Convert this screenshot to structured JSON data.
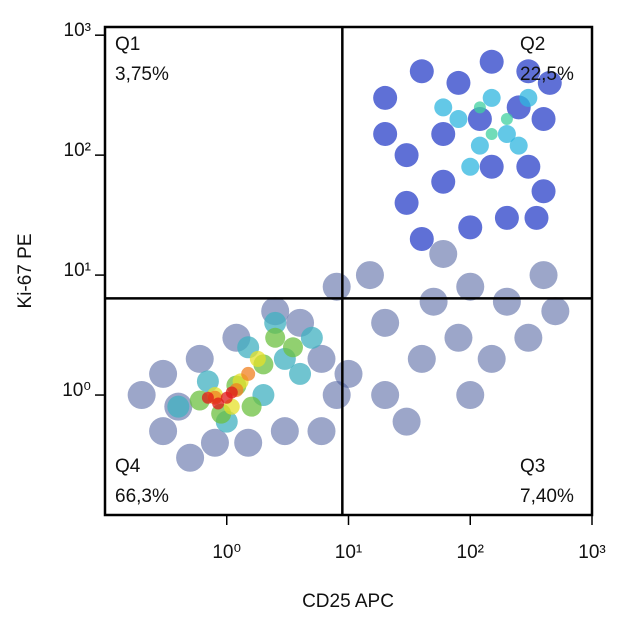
{
  "chart_data": {
    "type": "scatter",
    "x_label": "CD25 APC",
    "y_label": "Ki-67 PE",
    "xscale": "log",
    "yscale": "log",
    "xlim": [
      0.1,
      1000
    ],
    "ylim": [
      0.1,
      1170
    ],
    "xticks": [
      {
        "value": 1,
        "label": "10⁰"
      },
      {
        "value": 10,
        "label": "10¹"
      },
      {
        "value": 100,
        "label": "10²"
      },
      {
        "value": 1000,
        "label": "10³"
      }
    ],
    "yticks": [
      {
        "value": 1,
        "label": "10⁰"
      },
      {
        "value": 10,
        "label": "10¹"
      },
      {
        "value": 100,
        "label": "10²"
      },
      {
        "value": 1000,
        "label": "10³"
      }
    ],
    "xgate": 8.9,
    "ygate": 6.4,
    "quadrants": [
      {
        "name": "Q1",
        "value": 3.75,
        "value_label": "3,75%"
      },
      {
        "name": "Q2",
        "value": 22.5,
        "value_label": "22,5%"
      },
      {
        "name": "Q3",
        "value": 7.4,
        "value_label": "7,40%"
      },
      {
        "name": "Q4",
        "value": 66.3,
        "value_label": "66,3%"
      }
    ],
    "series": [
      {
        "color": "#4b5c9c",
        "x": [
          0.3,
          0.5,
          0.8,
          1.5,
          3,
          6,
          0.3,
          0.6,
          1.2,
          2.5,
          4,
          6,
          8,
          10,
          20,
          40,
          80,
          150,
          300,
          500,
          20,
          50,
          100,
          200,
          400,
          30,
          100,
          0.2,
          0.4,
          8,
          15,
          60
        ],
        "values": [
          0.5,
          0.3,
          0.4,
          0.4,
          0.5,
          0.5,
          1.5,
          2,
          3,
          5,
          4,
          2,
          1,
          1.5,
          1,
          2,
          3,
          2,
          3,
          5,
          4,
          6,
          8,
          6,
          10,
          0.6,
          1,
          1,
          0.8,
          8,
          10,
          15
        ]
      },
      {
        "color": "#2a40c8",
        "x": [
          20,
          40,
          80,
          150,
          300,
          30,
          60,
          120,
          250,
          400,
          30,
          60,
          150,
          300,
          400,
          40,
          100,
          200,
          350,
          20,
          450
        ],
        "values": [
          300,
          500,
          400,
          600,
          500,
          100,
          150,
          200,
          250,
          200,
          40,
          60,
          80,
          80,
          50,
          20,
          25,
          30,
          30,
          150,
          400
        ]
      },
      {
        "color": "#2fb6df",
        "x": [
          80,
          120,
          200,
          150,
          250,
          100,
          60,
          300
        ],
        "values": [
          200,
          120,
          150,
          300,
          120,
          80,
          250,
          300
        ]
      },
      {
        "color": "#40d0a0",
        "x": [
          150,
          200,
          120
        ],
        "values": [
          150,
          200,
          250
        ]
      },
      {
        "color": "#40b0c0",
        "x": [
          0.4,
          1,
          2,
          3,
          1.5,
          2.5,
          4,
          0.7,
          5
        ],
        "values": [
          0.8,
          0.6,
          1,
          2,
          2.5,
          4,
          1.5,
          1.3,
          3
        ]
      },
      {
        "color": "#6cc040",
        "x": [
          0.6,
          1.2,
          2,
          2.5,
          1.6,
          3.5,
          0.9
        ],
        "values": [
          0.9,
          1.2,
          1.8,
          3,
          0.8,
          2.5,
          0.7
        ]
      },
      {
        "color": "#e6e02a",
        "x": [
          0.8,
          1.3,
          1.8,
          1.1
        ],
        "values": [
          1,
          1.3,
          2,
          0.8
        ]
      },
      {
        "color": "#f08020",
        "x": [
          0.8,
          1.2,
          1.5
        ],
        "values": [
          0.95,
          1.1,
          1.5
        ]
      },
      {
        "color": "#e01818",
        "x": [
          0.7,
          1,
          0.85,
          1.1
        ],
        "values": [
          0.95,
          0.95,
          0.85,
          1.05
        ]
      }
    ]
  }
}
